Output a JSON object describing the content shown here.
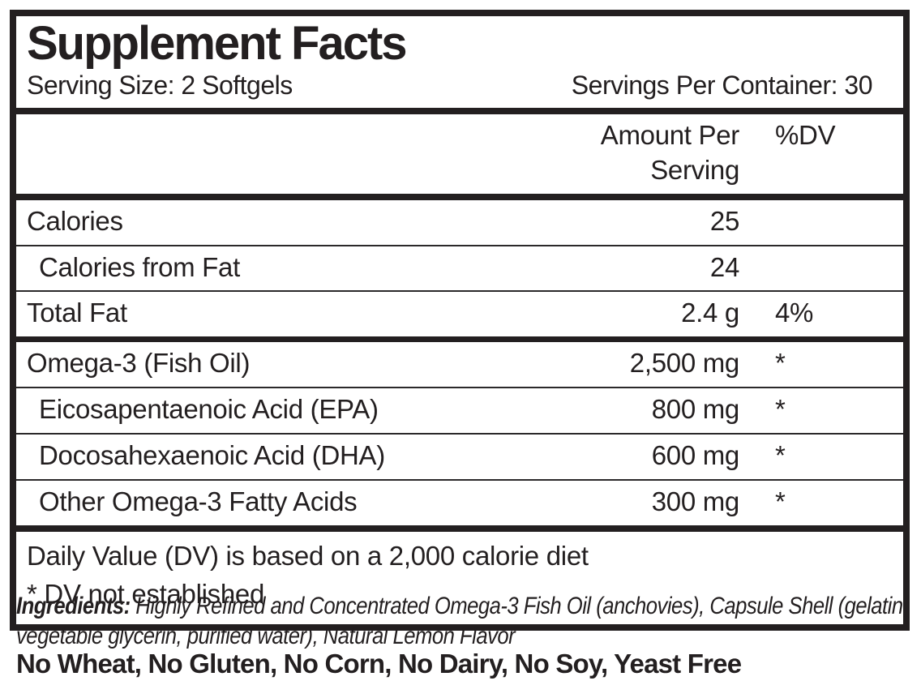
{
  "label": {
    "title": "Supplement Facts",
    "serving_size": "Serving Size: 2 Softgels",
    "servings_per_container": "Servings Per Container: 30",
    "columns": {
      "amount_header": "Amount Per Serving",
      "dv_header": "%DV"
    },
    "sections": [
      {
        "rows": [
          {
            "name": "Calories",
            "amount": "25",
            "dv": "",
            "indent": false
          },
          {
            "name": "Calories from Fat",
            "amount": "24",
            "dv": "",
            "indent": true
          },
          {
            "name": "Total Fat",
            "amount": "2.4 g",
            "dv": "4%",
            "indent": false
          }
        ]
      },
      {
        "rows": [
          {
            "name": "Omega-3 (Fish Oil)",
            "amount": "2,500 mg",
            "dv": "*",
            "indent": false
          },
          {
            "name": "Eicosapentaenoic Acid (EPA)",
            "amount": "800 mg",
            "dv": "*",
            "indent": true
          },
          {
            "name": "Docosahexaenoic Acid (DHA)",
            "amount": "600 mg",
            "dv": "*",
            "indent": true
          },
          {
            "name": "Other Omega-3 Fatty Acids",
            "amount": "300 mg",
            "dv": "*",
            "indent": true
          }
        ]
      }
    ],
    "footnote_line1": "Daily Value (DV) is based on a 2,000 calorie diet",
    "footnote_line2": "* DV not established"
  },
  "ingredients": {
    "prefix": "Ingredients:",
    "text": " Highly Refined and Concentrated Omega-3 Fish Oil (anchovies), Capsule Shell (gelatin, vegetable glycerin, purified water), Natural Lemon Flavor"
  },
  "allergen_statement": "No Wheat, No Gluten, No Corn, No Dairy, No Soy, Yeast Free",
  "colors": {
    "ink": "#231f20",
    "background": "#ffffff"
  }
}
